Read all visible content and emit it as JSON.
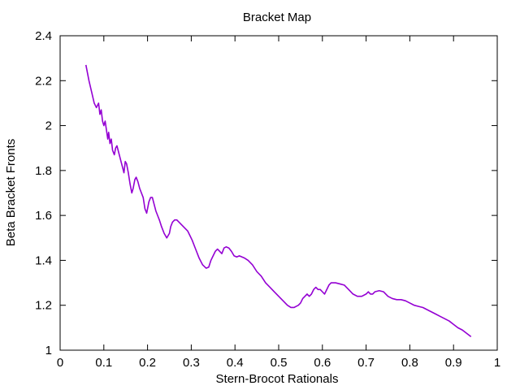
{
  "chart_data": {
    "type": "line",
    "title": "Bracket Map",
    "xlabel": "Stern-Brocot Rationals",
    "ylabel": "Beta Bracket Fronts",
    "xlim": [
      0,
      1
    ],
    "ylim": [
      1,
      2.4
    ],
    "xticks": [
      0,
      0.1,
      0.2,
      0.3,
      0.4,
      0.5,
      0.6,
      0.7,
      0.8,
      0.9,
      1
    ],
    "xtick_labels": [
      "0",
      "0.1",
      "0.2",
      "0.3",
      "0.4",
      "0.5",
      "0.6",
      "0.7",
      "0.8",
      "0.9",
      "1"
    ],
    "yticks": [
      1,
      1.2,
      1.4,
      1.6,
      1.8,
      2,
      2.2,
      2.4
    ],
    "ytick_labels": [
      "1",
      "1.2",
      "1.4",
      "1.6",
      "1.8",
      "2",
      "2.2",
      "2.4"
    ],
    "grid": false,
    "legend": "none",
    "series": [
      {
        "color": "#9400d3",
        "x": [
          0.059,
          0.066,
          0.072,
          0.078,
          0.083,
          0.088,
          0.091,
          0.094,
          0.097,
          0.1,
          0.103,
          0.106,
          0.109,
          0.111,
          0.114,
          0.117,
          0.12,
          0.124,
          0.127,
          0.13,
          0.134,
          0.138,
          0.142,
          0.146,
          0.149,
          0.152,
          0.156,
          0.16,
          0.164,
          0.167,
          0.171,
          0.174,
          0.178,
          0.182,
          0.186,
          0.19,
          0.194,
          0.198,
          0.2,
          0.203,
          0.207,
          0.211,
          0.215,
          0.219,
          0.223,
          0.227,
          0.232,
          0.238,
          0.244,
          0.25,
          0.253,
          0.257,
          0.262,
          0.267,
          0.272,
          0.277,
          0.282,
          0.287,
          0.292,
          0.297,
          0.302,
          0.31,
          0.318,
          0.326,
          0.334,
          0.34,
          0.345,
          0.35,
          0.355,
          0.36,
          0.365,
          0.37,
          0.375,
          0.38,
          0.386,
          0.392,
          0.398,
          0.404,
          0.41,
          0.416,
          0.422,
          0.43,
          0.44,
          0.45,
          0.46,
          0.47,
          0.48,
          0.49,
          0.5,
          0.51,
          0.52,
          0.528,
          0.535,
          0.54,
          0.545,
          0.55,
          0.555,
          0.56,
          0.565,
          0.57,
          0.575,
          0.58,
          0.585,
          0.59,
          0.595,
          0.6,
          0.605,
          0.61,
          0.615,
          0.62,
          0.63,
          0.64,
          0.65,
          0.66,
          0.67,
          0.68,
          0.69,
          0.7,
          0.705,
          0.71,
          0.715,
          0.72,
          0.73,
          0.74,
          0.75,
          0.76,
          0.77,
          0.78,
          0.79,
          0.8,
          0.81,
          0.82,
          0.83,
          0.84,
          0.85,
          0.86,
          0.87,
          0.88,
          0.89,
          0.9,
          0.91,
          0.92,
          0.93,
          0.94
        ],
        "y": [
          2.27,
          2.2,
          2.15,
          2.1,
          2.08,
          2.1,
          2.05,
          2.07,
          2.02,
          2.0,
          2.02,
          1.98,
          1.94,
          1.97,
          1.92,
          1.94,
          1.89,
          1.87,
          1.9,
          1.91,
          1.88,
          1.85,
          1.82,
          1.79,
          1.84,
          1.83,
          1.79,
          1.74,
          1.7,
          1.72,
          1.76,
          1.77,
          1.75,
          1.72,
          1.7,
          1.68,
          1.63,
          1.61,
          1.63,
          1.66,
          1.68,
          1.68,
          1.65,
          1.62,
          1.6,
          1.58,
          1.55,
          1.52,
          1.5,
          1.52,
          1.55,
          1.57,
          1.58,
          1.58,
          1.57,
          1.56,
          1.55,
          1.54,
          1.53,
          1.51,
          1.49,
          1.45,
          1.41,
          1.38,
          1.365,
          1.37,
          1.4,
          1.42,
          1.44,
          1.45,
          1.44,
          1.43,
          1.455,
          1.46,
          1.455,
          1.44,
          1.42,
          1.415,
          1.42,
          1.415,
          1.41,
          1.4,
          1.38,
          1.35,
          1.33,
          1.3,
          1.28,
          1.26,
          1.24,
          1.22,
          1.2,
          1.19,
          1.19,
          1.195,
          1.2,
          1.21,
          1.23,
          1.24,
          1.25,
          1.24,
          1.25,
          1.27,
          1.28,
          1.27,
          1.27,
          1.26,
          1.25,
          1.27,
          1.29,
          1.3,
          1.3,
          1.295,
          1.29,
          1.27,
          1.25,
          1.24,
          1.24,
          1.25,
          1.26,
          1.25,
          1.25,
          1.26,
          1.265,
          1.26,
          1.24,
          1.23,
          1.225,
          1.225,
          1.22,
          1.21,
          1.2,
          1.195,
          1.19,
          1.18,
          1.17,
          1.16,
          1.15,
          1.14,
          1.13,
          1.115,
          1.1,
          1.09,
          1.075,
          1.06
        ]
      }
    ]
  }
}
